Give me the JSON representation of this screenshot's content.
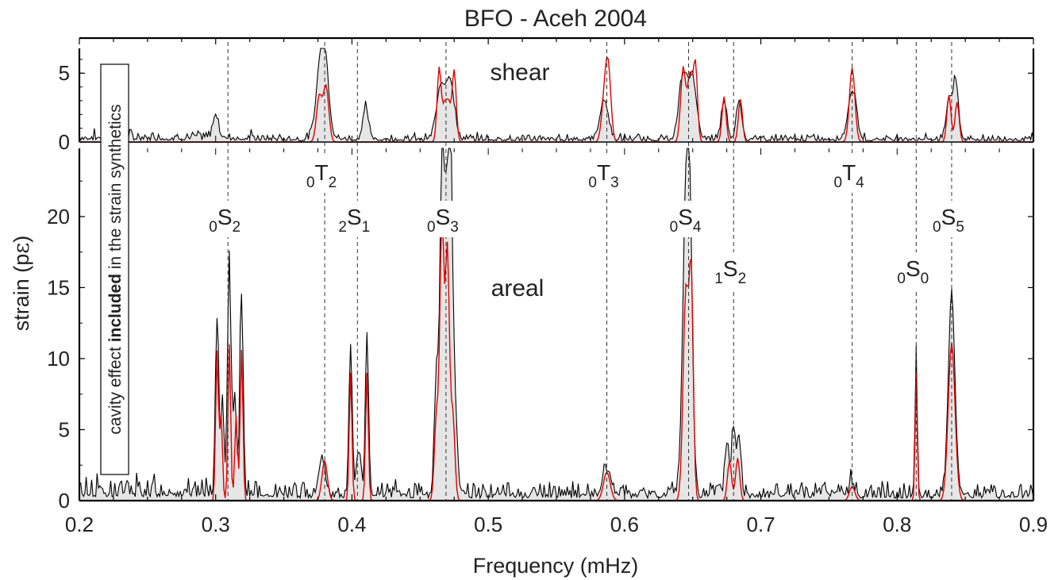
{
  "chart_data": {
    "type": "line",
    "title": "BFO - Aceh 2004",
    "xlabel": "Frequency (mHz)",
    "ylabel_main": "strain (p",
    "ylabel_symbol": "ε",
    "ylabel_close": ")",
    "xlim": [
      0.2,
      0.9
    ],
    "xticks": [
      0.2,
      0.3,
      0.4,
      0.5,
      0.6,
      0.7,
      0.8,
      0.9
    ],
    "xtick_labels": [
      "0.2",
      "0.3",
      "0.4",
      "0.5",
      "0.6",
      "0.7",
      "0.8",
      "0.9"
    ],
    "annotation_box": {
      "part1": "cavity effect ",
      "part2": "included",
      "part3": " in the strain synthetics"
    },
    "colors": {
      "observed": "#000000",
      "synthetic": "#e00000",
      "fill": "#e6e6e6",
      "mode_line": "#333333"
    },
    "panels": [
      {
        "name": "shear",
        "label": "shear",
        "ylim": [
          0,
          6.8
        ],
        "yticks": [
          0,
          5
        ],
        "ytick_labels": [
          "0",
          "5"
        ],
        "peaks_observed": [
          [
            0.38,
            5.6,
            0.003
          ],
          [
            0.376,
            3.6,
            0.003
          ],
          [
            0.41,
            2.4,
            0.002
          ],
          [
            0.465,
            3.8,
            0.003
          ],
          [
            0.472,
            4.3,
            0.003
          ],
          [
            0.585,
            2.9,
            0.003
          ],
          [
            0.643,
            4.6,
            0.003
          ],
          [
            0.65,
            4.3,
            0.003
          ],
          [
            0.673,
            2.8,
            0.002
          ],
          [
            0.684,
            2.9,
            0.002
          ],
          [
            0.767,
            3.6,
            0.003
          ],
          [
            0.838,
            3.0,
            0.002
          ],
          [
            0.843,
            4.2,
            0.002
          ],
          [
            0.3,
            1.8,
            0.002
          ]
        ],
        "peaks_synthetic": [
          [
            0.376,
            3.3,
            0.002
          ],
          [
            0.381,
            4.0,
            0.002
          ],
          [
            0.464,
            5.4,
            0.0015
          ],
          [
            0.468,
            2.5,
            0.0015
          ],
          [
            0.471,
            2.6,
            0.0015
          ],
          [
            0.475,
            5.2,
            0.0015
          ],
          [
            0.588,
            5.2,
            0.002
          ],
          [
            0.585,
            2.6,
            0.002
          ],
          [
            0.643,
            5.4,
            0.0018
          ],
          [
            0.648,
            4.8,
            0.0018
          ],
          [
            0.652,
            5.6,
            0.0015
          ],
          [
            0.673,
            3.3,
            0.0015
          ],
          [
            0.685,
            3.1,
            0.0015
          ],
          [
            0.767,
            5.4,
            0.002
          ],
          [
            0.838,
            3.4,
            0.0015
          ],
          [
            0.844,
            2.9,
            0.0015
          ]
        ],
        "noise_level": 0.75,
        "noise_seed": 7
      },
      {
        "name": "areal",
        "label": "areal",
        "ylim": [
          0,
          24.8
        ],
        "yticks": [
          0,
          5,
          10,
          15,
          20
        ],
        "ytick_labels": [
          "0",
          "5",
          "10",
          "15",
          "20"
        ],
        "peaks_observed": [
          [
            0.301,
            12.2,
            0.0012
          ],
          [
            0.305,
            6.5,
            0.0012
          ],
          [
            0.31,
            17.0,
            0.0012
          ],
          [
            0.314,
            7.0,
            0.0012
          ],
          [
            0.319,
            14.2,
            0.0012
          ],
          [
            0.399,
            10.8,
            0.0012
          ],
          [
            0.411,
            10.8,
            0.0012
          ],
          [
            0.405,
            3.2,
            0.0015
          ],
          [
            0.378,
            2.6,
            0.0025
          ],
          [
            0.466,
            22.7,
            0.0015
          ],
          [
            0.472,
            23.6,
            0.0015
          ],
          [
            0.462,
            8.6,
            0.0015
          ],
          [
            0.475,
            7.0,
            0.002
          ],
          [
            0.469,
            16.0,
            0.0015
          ],
          [
            0.587,
            1.8,
            0.003
          ],
          [
            0.645,
            18.8,
            0.0025
          ],
          [
            0.648,
            14.0,
            0.002
          ],
          [
            0.675,
            3.6,
            0.0015
          ],
          [
            0.68,
            4.8,
            0.0015
          ],
          [
            0.684,
            3.5,
            0.0015
          ],
          [
            0.814,
            10.7,
            0.0008
          ],
          [
            0.84,
            13.5,
            0.0025
          ],
          [
            0.767,
            0.8,
            0.002
          ]
        ],
        "peaks_synthetic": [
          [
            0.301,
            10.5,
            0.001
          ],
          [
            0.31,
            11.0,
            0.001
          ],
          [
            0.304,
            6.0,
            0.001
          ],
          [
            0.315,
            6.0,
            0.001
          ],
          [
            0.319,
            10.6,
            0.001
          ],
          [
            0.399,
            9.0,
            0.001
          ],
          [
            0.411,
            9.0,
            0.001
          ],
          [
            0.38,
            2.8,
            0.002
          ],
          [
            0.466,
            19.6,
            0.0015
          ],
          [
            0.47,
            17.5,
            0.0015
          ],
          [
            0.462,
            6.0,
            0.0015
          ],
          [
            0.474,
            6.0,
            0.0015
          ],
          [
            0.587,
            2.0,
            0.0025
          ],
          [
            0.645,
            14.8,
            0.002
          ],
          [
            0.649,
            15.0,
            0.0015
          ],
          [
            0.677,
            2.8,
            0.0015
          ],
          [
            0.683,
            3.0,
            0.0015
          ],
          [
            0.767,
            1.0,
            0.002
          ],
          [
            0.814,
            9.0,
            0.0008
          ],
          [
            0.84,
            11.1,
            0.0025
          ]
        ],
        "noise_level": 1.6,
        "noise_seed": 13
      }
    ],
    "modes": [
      {
        "f": 0.309,
        "pre": "0",
        "main": "S",
        "sub": "2"
      },
      {
        "f": 0.38,
        "pre": "0",
        "main": "T",
        "sub": "2"
      },
      {
        "f": 0.404,
        "pre": "2",
        "main": "S",
        "sub": "1"
      },
      {
        "f": 0.469,
        "pre": "0",
        "main": "S",
        "sub": "3"
      },
      {
        "f": 0.587,
        "pre": "0",
        "main": "T",
        "sub": "3"
      },
      {
        "f": 0.647,
        "pre": "0",
        "main": "S",
        "sub": "4"
      },
      {
        "f": 0.68,
        "pre": "1",
        "main": "S",
        "sub": "2"
      },
      {
        "f": 0.767,
        "pre": "0",
        "main": "T",
        "sub": "4"
      },
      {
        "f": 0.814,
        "pre": "0",
        "main": "S",
        "sub": "0"
      },
      {
        "f": 0.84,
        "pre": "0",
        "main": "S",
        "sub": "5"
      }
    ]
  }
}
